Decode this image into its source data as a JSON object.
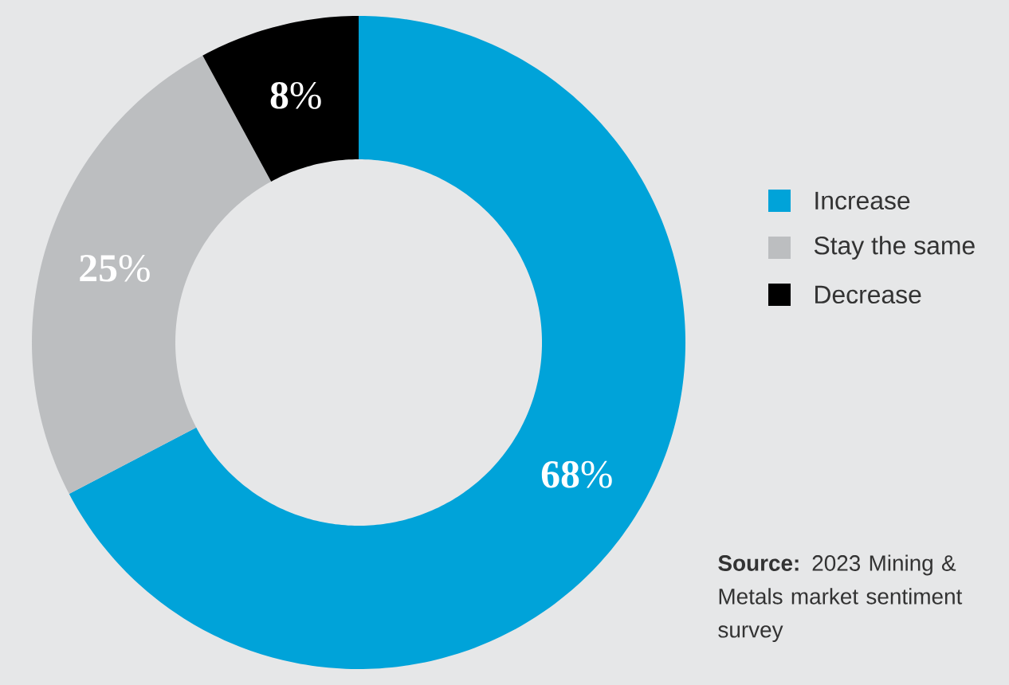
{
  "chart_data": {
    "type": "donut",
    "categories": [
      "Increase",
      "Stay the same",
      "Decrease"
    ],
    "values": [
      68,
      25,
      8
    ],
    "colors": [
      "#00a3d9",
      "#bcbec0",
      "#000000"
    ],
    "value_labels": [
      "**68**%",
      "**25**%",
      "**8**%"
    ],
    "legend": "right",
    "annotations": [
      "**Source:** 2023 Mining & Metals market sentiment survey"
    ]
  }
}
